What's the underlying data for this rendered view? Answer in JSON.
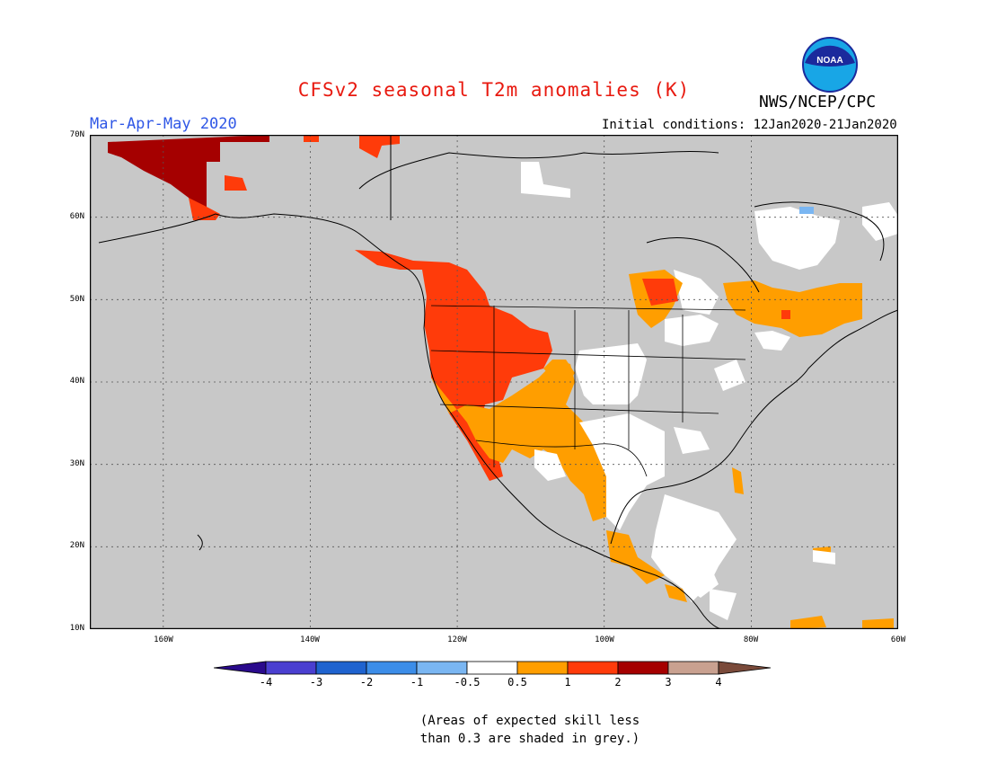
{
  "header": {
    "title": "CFSv2 seasonal T2m anomalies (K)",
    "organization": "NWS/NCEP/CPC",
    "season": "Mar-Apr-May 2020",
    "initial_conditions": "Initial conditions: 12Jan2020-21Jan2020",
    "logo_text": "NOAA"
  },
  "map": {
    "projection": "lat-lon",
    "lon_range": [
      -170,
      -60
    ],
    "lat_range": [
      10,
      70
    ],
    "lat_labels": [
      "70N",
      "60N",
      "50N",
      "40N",
      "30N",
      "20N",
      "10N"
    ],
    "lon_labels": [
      "160W",
      "140W",
      "120W",
      "100W",
      "80W",
      "60W"
    ],
    "gridlines": "dotted",
    "land_color": "#c8c8c8",
    "ocean_color": "#c8c8c8"
  },
  "colorbar": {
    "labels": [
      "-4",
      "-3",
      "-2",
      "-1",
      "-0.5",
      "0.5",
      "1",
      "2",
      "3",
      "4"
    ],
    "colors": [
      "#2a0a8c",
      "#4a3fd0",
      "#1f63cf",
      "#3c8de8",
      "#7ab6f2",
      "#ffffff",
      "#ff9e00",
      "#ff3b0a",
      "#a50000",
      "#c9a190",
      "#7a4a3a"
    ]
  },
  "footnote": {
    "line1": "(Areas of expected skill less",
    "line2": "than 0.3 are shaded in grey.)"
  }
}
